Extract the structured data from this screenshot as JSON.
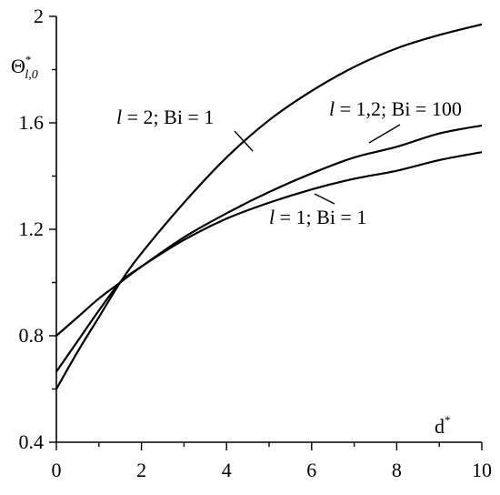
{
  "chart_data": {
    "type": "line",
    "xlim": [
      0,
      10
    ],
    "ylim": [
      0.4,
      2.0
    ],
    "xticks": [
      0,
      2,
      4,
      6,
      8,
      10
    ],
    "yticks": [
      0.4,
      0.8,
      1.2,
      1.6,
      2.0
    ],
    "xtick_labels": [
      "0",
      "2",
      "4",
      "6",
      "8",
      "10"
    ],
    "ytick_labels": [
      "0.4",
      "0.8",
      "1.2",
      "1.6",
      "2"
    ],
    "xlabel": {
      "base": "d",
      "sup": "*"
    },
    "ylabel": {
      "base": "Θ",
      "sup": "*",
      "sub": "l,0"
    },
    "grid": false,
    "series": [
      {
        "name": "l = 2; Bi = 1",
        "label_parts": {
          "var": "l",
          "rest": " = 2; Bi = 1"
        },
        "x": [
          0,
          0.5,
          1,
          1.5,
          2,
          3,
          4,
          5,
          6,
          7,
          8,
          9,
          10
        ],
        "y": [
          0.6,
          0.74,
          0.87,
          1.0,
          1.11,
          1.3,
          1.47,
          1.61,
          1.72,
          1.81,
          1.88,
          1.93,
          1.97
        ]
      },
      {
        "name": "l = 1,2; Bi = 100",
        "label_parts": {
          "var": "l",
          "rest": " = 1,2; Bi = 100"
        },
        "x": [
          0,
          0.5,
          1,
          1.5,
          2,
          3,
          4,
          5,
          6,
          7,
          8,
          9,
          10
        ],
        "y": [
          0.8,
          0.87,
          0.94,
          1.0,
          1.06,
          1.17,
          1.26,
          1.34,
          1.41,
          1.47,
          1.51,
          1.56,
          1.59
        ]
      },
      {
        "name": "l = 1; Bi = 1",
        "label_parts": {
          "var": "l",
          "rest": " = 1; Bi = 1"
        },
        "x": [
          0,
          0.5,
          1,
          1.5,
          2,
          3,
          4,
          5,
          6,
          7,
          8,
          9,
          10
        ],
        "y": [
          0.665,
          0.78,
          0.895,
          1.0,
          1.06,
          1.16,
          1.24,
          1.3,
          1.35,
          1.39,
          1.42,
          1.46,
          1.49
        ]
      }
    ]
  }
}
